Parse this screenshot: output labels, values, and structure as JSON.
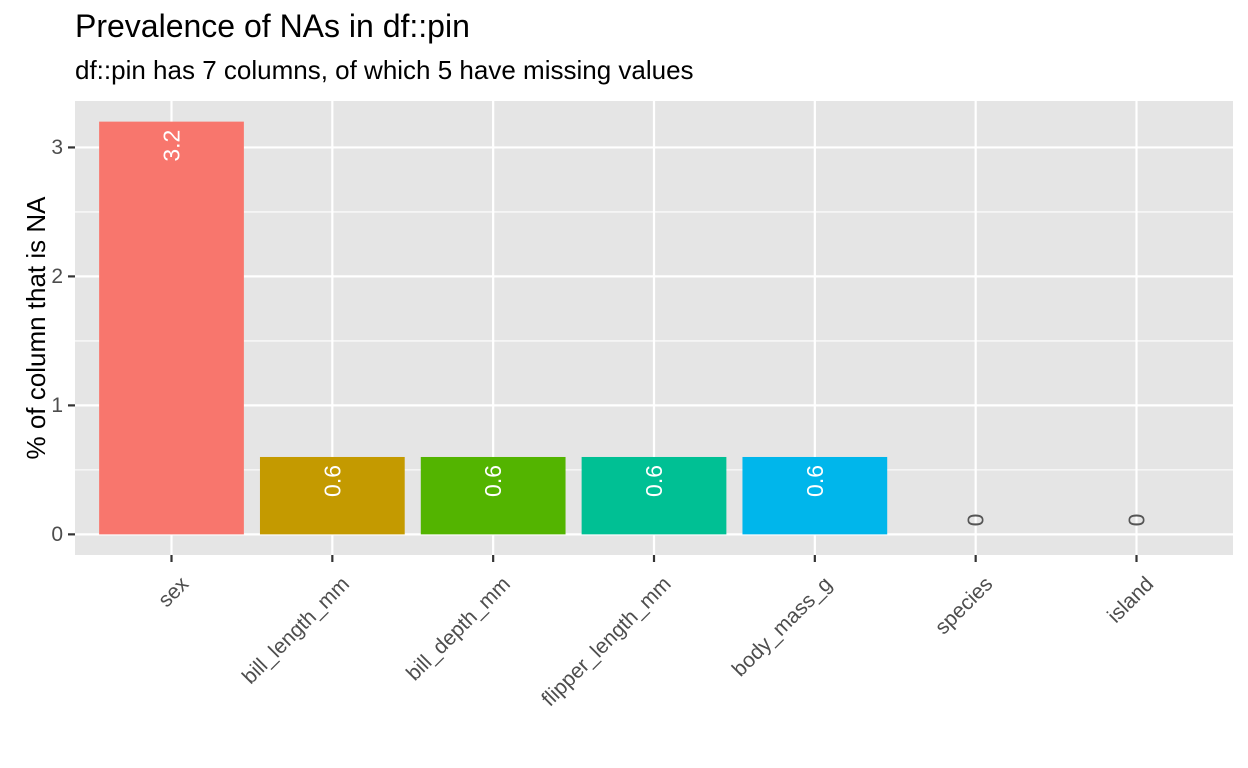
{
  "chart_data": {
    "type": "bar",
    "title": "Prevalence of NAs in df::pin",
    "subtitle": "df::pin has 7 columns, of which 5 have missing values",
    "xlabel": "",
    "ylabel": "% of column that is NA",
    "categories": [
      "sex",
      "bill_length_mm",
      "bill_depth_mm",
      "flipper_length_mm",
      "body_mass_g",
      "species",
      "island"
    ],
    "values": [
      3.2,
      0.6,
      0.6,
      0.6,
      0.6,
      0,
      0
    ],
    "data_labels": [
      "3.2",
      "0.6",
      "0.6",
      "0.6",
      "0.6",
      "0",
      "0"
    ],
    "colors": [
      "#F8766D",
      "#C49A00",
      "#53B400",
      "#00C094",
      "#00B6EB",
      "#A58AFF",
      "#FB61D7"
    ],
    "yticks": [
      0,
      1,
      2,
      3
    ],
    "ytick_labels": [
      "0",
      "1",
      "2",
      "3"
    ],
    "ylim": [
      -0.16,
      3.36
    ],
    "grid": true,
    "legend": "none",
    "panel_background": "#E5E5E5",
    "grid_color": "#FFFFFF"
  }
}
